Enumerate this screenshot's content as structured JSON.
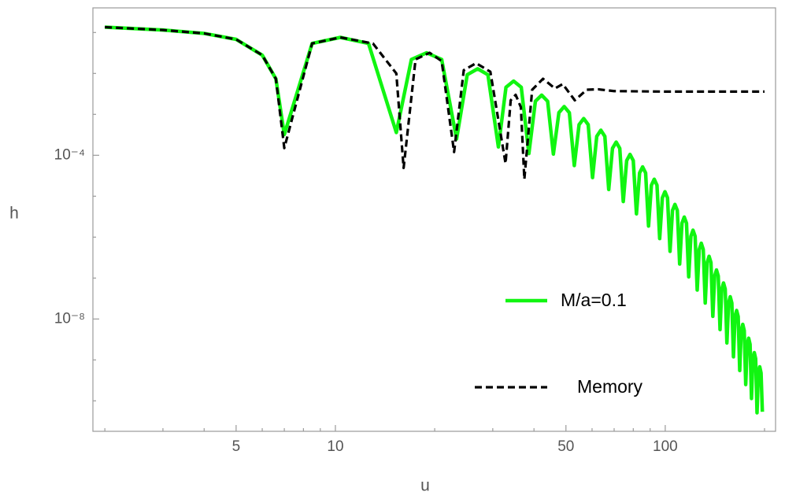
{
  "chart_data": {
    "type": "line",
    "x_label": "u",
    "y_label": "h",
    "log_x": true,
    "log_y": true,
    "xlim": [
      1.84,
      216
    ],
    "ylim": [
      1.8e-11,
      0.4
    ],
    "xticks": [
      5,
      10,
      50,
      100
    ],
    "xminorticks": [
      2,
      3,
      4,
      6,
      7,
      8,
      9,
      20,
      30,
      40,
      60,
      70,
      80,
      90,
      200
    ],
    "yticks": [
      {
        "value": 0.0001,
        "label": "10⁻⁴"
      },
      {
        "value": 1e-08,
        "label": "10⁻⁸"
      }
    ],
    "yminorticks": [
      0.1,
      0.01,
      0.001,
      1e-05,
      1e-06,
      1e-07,
      1e-09,
      1e-10
    ],
    "legend": "right",
    "series": [
      {
        "name": "M/a=0.1",
        "color": "#11f511",
        "dash": false,
        "x": [
          2,
          3,
          4,
          5,
          6,
          6.6,
          7.0,
          8.5,
          10.35,
          12.6,
          15.3,
          17.0,
          18.9,
          21.0,
          23.3,
          25.1,
          27.0,
          29.0,
          31.2,
          32.9,
          34.7,
          36.6,
          38.6,
          40.4,
          42.2,
          44.0,
          45.8,
          47.6,
          49.4,
          51.2,
          53,
          54.8,
          56.6,
          58.4,
          60.2,
          62,
          63.8,
          65.6,
          67.4,
          69.2,
          71,
          72.8,
          74.6,
          76.4,
          78.2,
          80,
          81.8,
          83.6,
          85.4,
          87.2,
          89,
          90.8,
          92.6,
          94.4,
          96.2,
          98,
          99.8,
          101.6,
          103.4,
          105.2,
          107,
          108.8,
          110.6,
          112.4,
          114.2,
          116,
          117.8,
          119.6,
          121.4,
          123.2,
          125,
          126.8,
          128.6,
          130.4,
          132.2,
          134,
          135.8,
          137.6,
          139.4,
          141.2,
          143,
          144.8,
          146.6,
          148.4,
          150.2,
          152,
          153.8,
          155.6,
          157.4,
          159.2,
          161,
          162.8,
          164.6,
          166.4,
          168.2,
          170,
          171.8,
          173.6,
          175.4,
          177.2,
          179,
          180.8,
          182.6,
          184.4,
          186.2,
          188,
          189.8,
          191.6,
          193.4,
          195.2,
          197
        ],
        "values": [
          0.135,
          0.115,
          0.095,
          0.068,
          0.028,
          0.0074,
          0.00032,
          0.054,
          0.076,
          0.054,
          0.00036,
          0.022,
          0.032,
          0.022,
          0.00025,
          0.0093,
          0.013,
          0.0093,
          0.00016,
          0.0046,
          0.0065,
          0.0046,
          0.00011,
          0.00209,
          0.00295,
          0.00209,
          0.000107,
          0.0011,
          0.00155,
          0.0011,
          5.6e-05,
          0.00056,
          0.00079,
          0.00056,
          2.85e-05,
          0.00029,
          0.00041,
          0.00029,
          1.46e-05,
          0.000148,
          0.00021,
          0.000148,
          7.4e-06,
          7.4e-05,
          0.000105,
          7.4e-05,
          3.7e-06,
          3.7e-05,
          5.2e-05,
          3.7e-05,
          1.86e-06,
          1.86e-05,
          2.6e-05,
          1.86e-05,
          9.2e-07,
          9.1e-06,
          1.29e-05,
          9.1e-06,
          4.5e-07,
          4.5e-06,
          6.3e-06,
          4.5e-06,
          2.2e-07,
          2.2e-06,
          3.1e-06,
          2.2e-06,
          1.07e-07,
          1.05e-06,
          1.48e-06,
          1.05e-06,
          5.1e-08,
          5e-07,
          7.1e-07,
          5e-07,
          2.45e-08,
          2.4e-07,
          3.4e-07,
          2.4e-07,
          1.16e-08,
          1.12e-07,
          1.58e-07,
          1.12e-07,
          5.5e-09,
          5.4e-08,
          7.6e-08,
          5.4e-08,
          2.6e-09,
          2.45e-08,
          3.5e-08,
          2.45e-08,
          1.19e-09,
          1.15e-08,
          1.62e-08,
          1.15e-08,
          5.5e-10,
          5.2e-09,
          7.4e-09,
          5.2e-09,
          2.5e-10,
          2.4e-09,
          3.4e-09,
          2.4e-09,
          1.14e-10,
          1.07e-09,
          1.51e-09,
          1.07e-09,
          5.1e-11,
          4.8e-10,
          6.8e-10,
          4.8e-10,
          5.4e-11
        ]
      },
      {
        "name": "Memory",
        "color": "#000000",
        "dash": true,
        "x": [
          2,
          3,
          4,
          5,
          6,
          6.6,
          7.0,
          8.5,
          10.35,
          13.0,
          15.3,
          16.1,
          17.5,
          19.3,
          21.0,
          22.9,
          24.5,
          26.7,
          29.5,
          32.8,
          34.0,
          35.2,
          36.5,
          37.4,
          39.5,
          42.6,
          46.3,
          48.9,
          53.2,
          57.8,
          62.6,
          70,
          100,
          200
        ],
        "values": [
          0.135,
          0.115,
          0.095,
          0.068,
          0.028,
          0.0074,
          0.00015,
          0.054,
          0.076,
          0.054,
          0.01,
          4.9e-05,
          0.022,
          0.032,
          0.02,
          0.00012,
          0.012,
          0.0178,
          0.011,
          6.3e-05,
          0.0022,
          0.003,
          0.0015,
          2.6e-05,
          0.004,
          0.0074,
          0.0043,
          0.0055,
          0.0022,
          0.004,
          0.0041,
          0.0037,
          0.0036,
          0.0036
        ]
      }
    ]
  }
}
